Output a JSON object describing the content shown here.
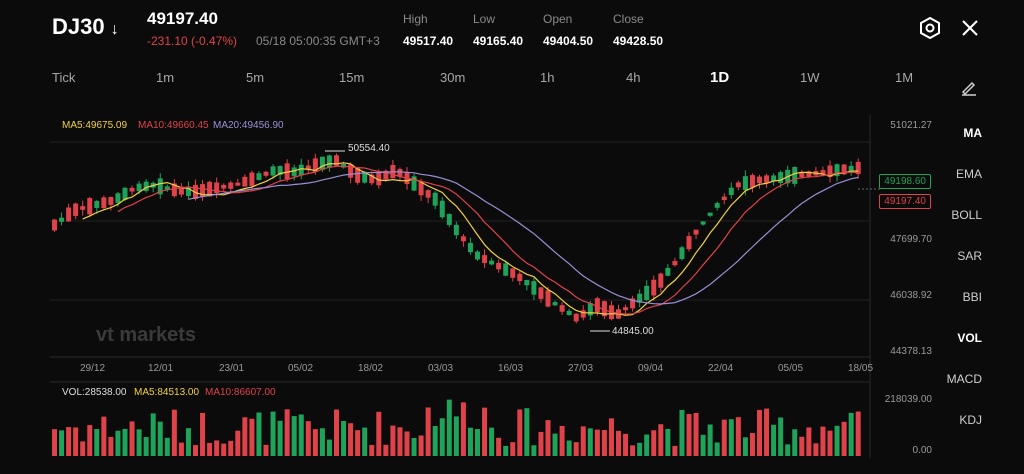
{
  "header": {
    "symbol": "DJ30",
    "last_price": "49197.40",
    "change": "-231.10 (-0.47%)",
    "timestamp": "05/18 05:00:35 GMT+3",
    "high_label": "High",
    "high": "49517.40",
    "low_label": "Low",
    "low": "49165.40",
    "open_label": "Open",
    "open": "49404.50",
    "close_label": "Close",
    "close": "49428.50"
  },
  "timeframes": [
    "Tick",
    "1m",
    "5m",
    "15m",
    "30m",
    "1h",
    "4h",
    "1D",
    "1W",
    "1M"
  ],
  "indicators": [
    "MA",
    "EMA",
    "BOLL",
    "SAR",
    "BBI",
    "VOL",
    "MACD",
    "KDJ"
  ],
  "chart": {
    "ma_legend": {
      "ma5": "MA5:49675.09",
      "ma10": "MA10:49660.45",
      "ma20": "MA20:49456.90"
    },
    "y_labels": [
      "51021.27",
      "47699.70",
      "46038.92",
      "44378.13"
    ],
    "x_labels": [
      "29/12",
      "12/01",
      "23/01",
      "05/02",
      "18/02",
      "03/03",
      "16/03",
      "27/03",
      "09/04",
      "22/04",
      "05/05",
      "18/05"
    ],
    "high_marker": "50554.40",
    "low_marker": "44845.00",
    "tag_upper": "49198.60",
    "tag_lower": "49197.40",
    "watermark": "vt markets"
  },
  "volume": {
    "legend": {
      "vol": "VOL:28538.00",
      "ma5": "MA5:84513.00",
      "ma10": "MA10:86607.00"
    },
    "y_top": "218039.00",
    "y_bottom": "0.00"
  },
  "colors": {
    "up": "#1fa35a",
    "down": "#e0424a",
    "ma5": "#f2d23c",
    "ma10": "#e0424a",
    "ma20": "#9a8fd6"
  }
}
